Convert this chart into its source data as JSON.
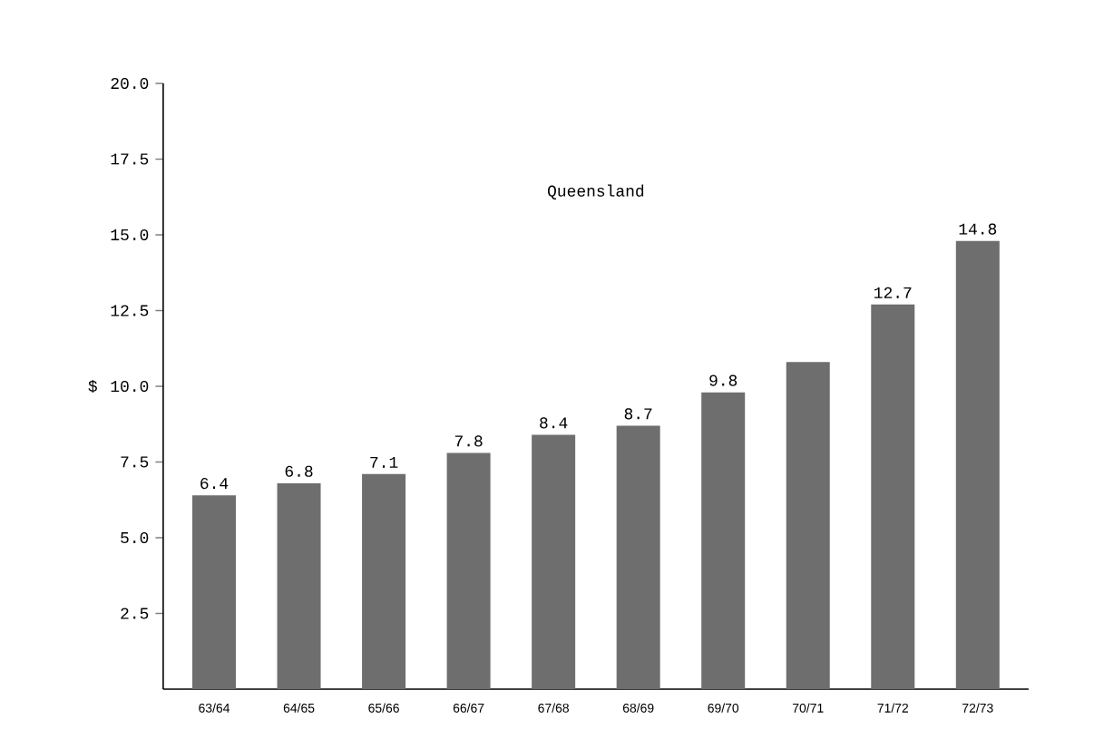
{
  "chart_data": {
    "type": "bar",
    "title": "Queensland",
    "ylabel": "$",
    "categories": [
      "63/64",
      "64/65",
      "65/66",
      "66/67",
      "67/68",
      "68/69",
      "69/70",
      "70/71",
      "71/72",
      "72/73"
    ],
    "values": [
      6.4,
      6.8,
      7.1,
      7.8,
      8.4,
      8.7,
      9.8,
      10.8,
      12.7,
      14.8
    ],
    "value_labels": [
      "6.4",
      "6.8",
      "7.1",
      "7.8",
      "8.4",
      "8.7",
      "9.8",
      null,
      "12.7",
      "14.8"
    ],
    "color": "#6e6e6e",
    "ylim": [
      0,
      20
    ],
    "yticks": [
      {
        "value": 2.5,
        "label": "2.5"
      },
      {
        "value": 5,
        "label": "5.0"
      },
      {
        "value": 7.5,
        "label": "7.5"
      },
      {
        "value": 10,
        "label": "10.0"
      },
      {
        "value": 12.5,
        "label": "12.5"
      },
      {
        "value": 15,
        "label": "15.0"
      },
      {
        "value": 17.5,
        "label": "17.5"
      },
      {
        "value": 20,
        "label": "20.0"
      }
    ],
    "grid": false
  }
}
